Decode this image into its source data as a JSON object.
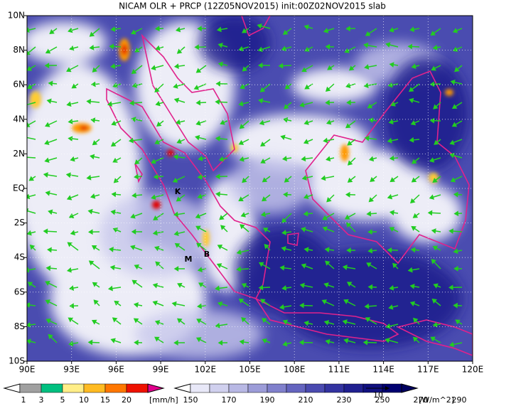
{
  "title": "NICAM OLR + PRCP (12Z05NOV2015) init:00Z02NOV2015 slab",
  "map": {
    "lat_labels": [
      "10N",
      "8N",
      "6N",
      "4N",
      "2N",
      "EQ",
      "2S",
      "4S",
      "6S",
      "8S",
      "10S"
    ],
    "lon_labels": [
      "90E",
      "93E",
      "96E",
      "99E",
      "102E",
      "105E",
      "108E",
      "111E",
      "114E",
      "117E",
      "120E"
    ],
    "stations": [
      "K",
      "M",
      "B"
    ]
  },
  "precip_colorbar": {
    "labels": [
      "1",
      "3",
      "5",
      "10",
      "15",
      "20"
    ],
    "unit": "[mm/h]"
  },
  "olr_colorbar": {
    "labels": [
      "150",
      "170",
      "190",
      "210",
      "230",
      "250",
      "270",
      "290"
    ],
    "unit": "[W/m^2]",
    "vector_scale": "10"
  }
}
